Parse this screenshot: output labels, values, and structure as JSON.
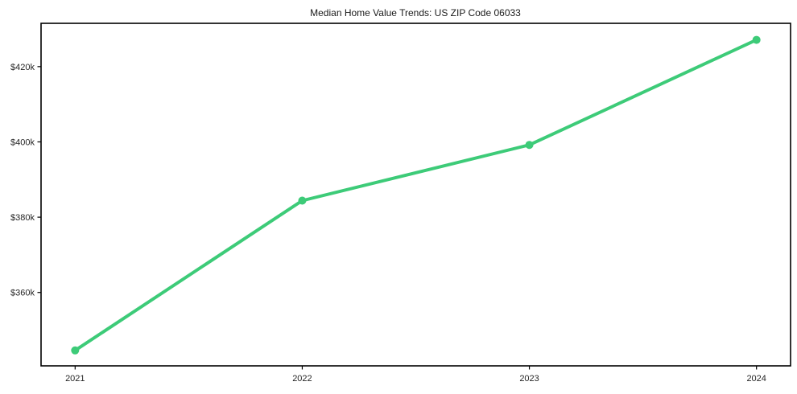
{
  "figure": {
    "background": "#ffffff",
    "axis_color": "#000000",
    "tick_label_color": "#262626",
    "accent_color": "#3dcb78"
  },
  "chart_data": {
    "type": "line",
    "title": "Median Home Value Trends: US ZIP Code 06033",
    "xlabel": "",
    "ylabel": "",
    "x": [
      2021,
      2022,
      2023,
      2024
    ],
    "x_tick_labels": [
      "2021",
      "2022",
      "2023",
      "2024"
    ],
    "y_ticks": [
      360000,
      380000,
      400000,
      420000
    ],
    "y_tick_labels": [
      "$360k",
      "$380k",
      "$400k",
      "$420k"
    ],
    "xlim": [
      2020.85,
      2024.15
    ],
    "ylim": [
      340500,
      431500
    ],
    "grid": false,
    "legend": "none",
    "series": [
      {
        "name": "Median home value",
        "values": [
          344600,
          384400,
          399200,
          427100
        ],
        "color": "#3dcb78",
        "line_width": 4,
        "marker": "circle",
        "marker_size": 5
      }
    ]
  }
}
